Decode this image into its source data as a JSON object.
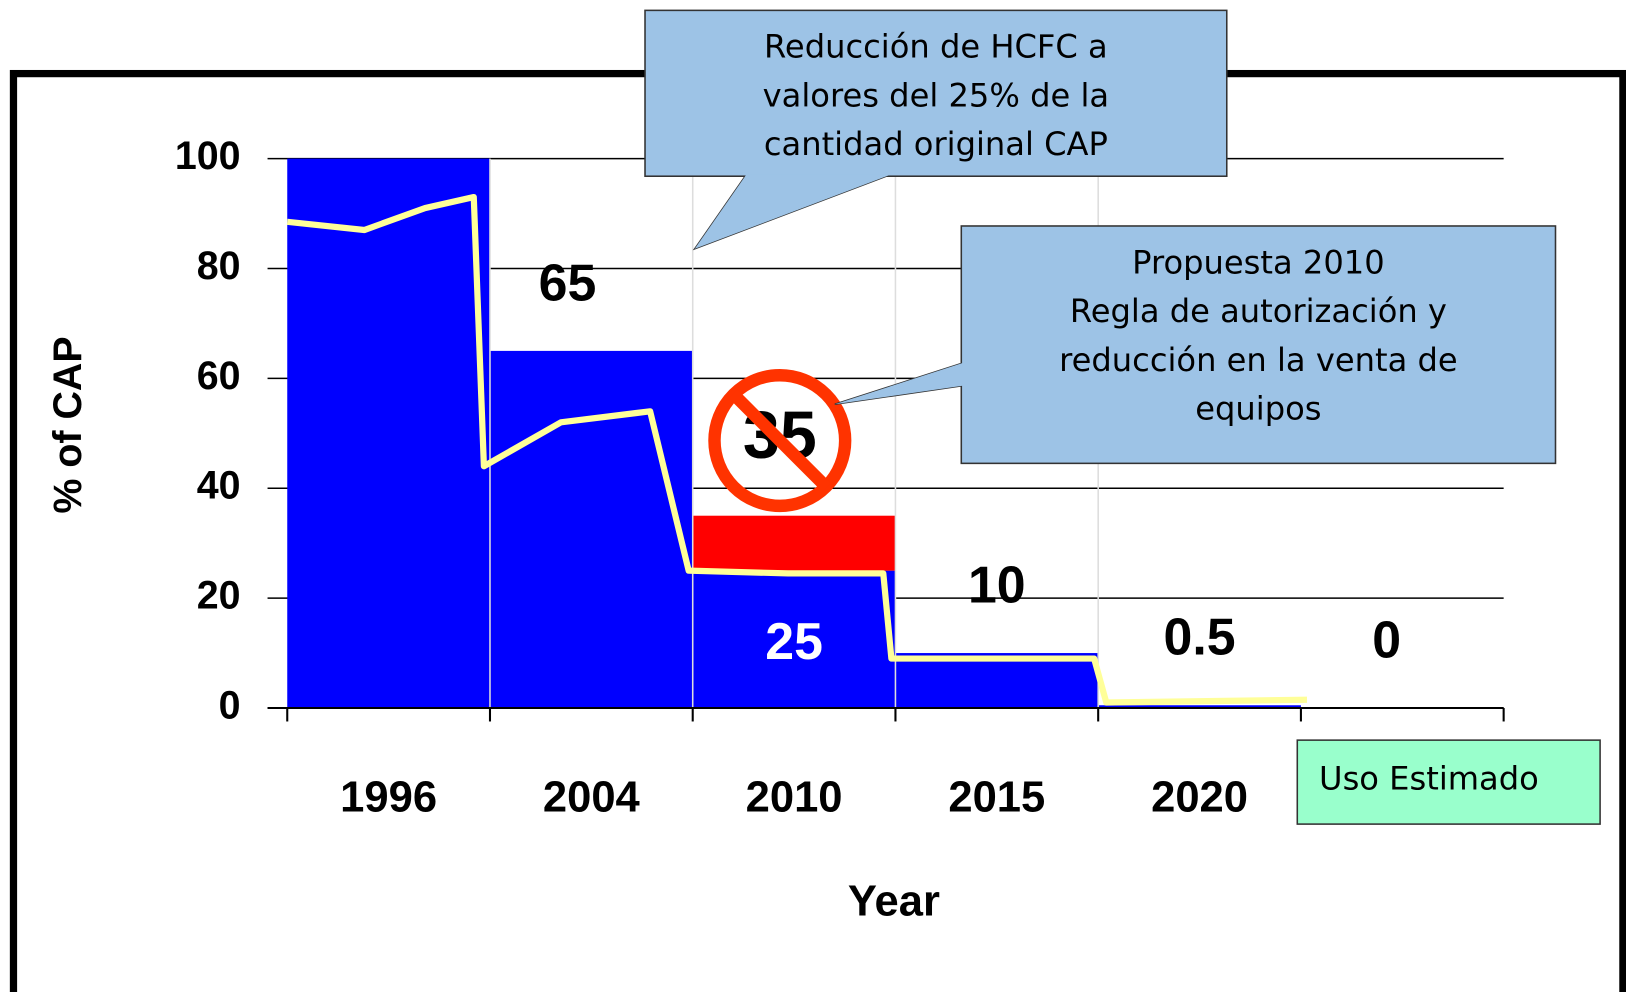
{
  "chart_data": {
    "type": "bar",
    "y_label": "% of CAP",
    "x_label": "Year",
    "categories": [
      "1996",
      "2004",
      "2010",
      "2015",
      "2020",
      null
    ],
    "series": [
      {
        "color": "#0000ff",
        "values": [
          100,
          65,
          25,
          10,
          0.5,
          0
        ],
        "value_labels": [
          null,
          "65",
          "25",
          "10",
          "0.5",
          "0"
        ]
      },
      {
        "color": "#ff0000",
        "values": [
          null,
          null,
          10,
          null,
          null,
          null
        ]
      }
    ],
    "line": {
      "name": "Uso Estimado",
      "color": "#ffff99",
      "legend_color": "#99ffcc",
      "x": [
        0,
        0.38,
        0.68,
        0.92,
        0.97,
        1.35,
        1.79,
        1.98,
        2.47,
        2.94,
        2.98,
        3.98,
        4.04,
        5.03
      ],
      "values": [
        88.5,
        87,
        91,
        93,
        44,
        52,
        54,
        25,
        24.5,
        24.5,
        9,
        9,
        1,
        1.5
      ]
    },
    "ylim": [
      0,
      100
    ],
    "yticks": [
      0,
      20,
      40,
      60,
      80,
      100
    ],
    "grid": true,
    "annotations": [
      {
        "lines": [
          "Reducción de HCFC a",
          "valores del 25% de la",
          "cantidad original CAP"
        ]
      },
      {
        "lines": [
          "Propuesta 2010",
          "Regla de autorización y",
          "reducción en la venta de",
          "equipos"
        ]
      },
      {
        "text": "35",
        "color": "#ff3300"
      }
    ]
  }
}
